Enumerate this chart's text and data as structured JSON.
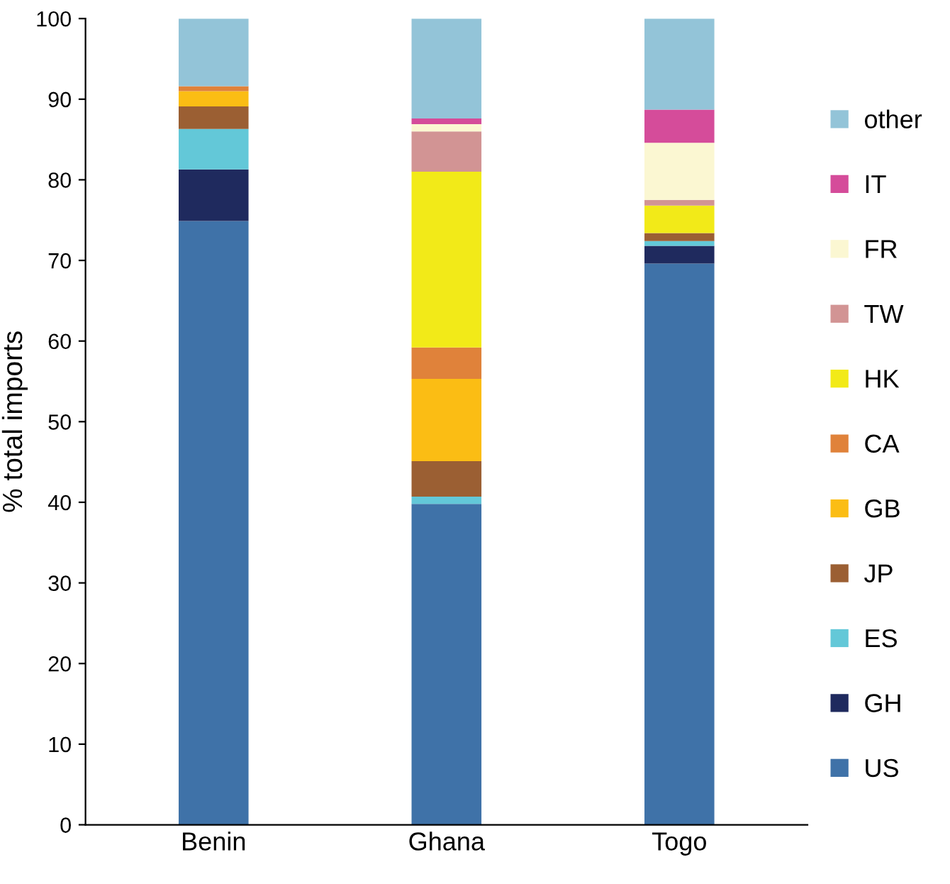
{
  "chart_data": {
    "type": "bar",
    "stacked": true,
    "ylabel": "% total imports",
    "categories": [
      "Benin",
      "Ghana",
      "Togo"
    ],
    "ylim": [
      0,
      100
    ],
    "yticks": [
      0,
      10,
      20,
      30,
      40,
      50,
      60,
      70,
      80,
      90,
      100
    ],
    "grid": false,
    "legend": "right",
    "series": [
      {
        "name": "US",
        "color": "#3f72a8",
        "values": [
          74.9,
          39.8,
          69.6
        ]
      },
      {
        "name": "GH",
        "color": "#1f2a5e",
        "values": [
          6.4,
          0,
          2.2
        ]
      },
      {
        "name": "ES",
        "color": "#63c8d8",
        "values": [
          5.0,
          0.9,
          0.6
        ]
      },
      {
        "name": "JP",
        "color": "#9b5f33",
        "values": [
          2.8,
          4.4,
          1.0
        ]
      },
      {
        "name": "GB",
        "color": "#fbbd14",
        "values": [
          1.9,
          10.2,
          0
        ]
      },
      {
        "name": "CA",
        "color": "#e0823a",
        "values": [
          0.6,
          3.9,
          0
        ]
      },
      {
        "name": "HK",
        "color": "#f2ea18",
        "values": [
          0,
          21.8,
          3.4
        ]
      },
      {
        "name": "TW",
        "color": "#d29494",
        "values": [
          0,
          5.0,
          0.7
        ]
      },
      {
        "name": "FR",
        "color": "#fbf7d2",
        "values": [
          0,
          0.9,
          7.1
        ]
      },
      {
        "name": "IT",
        "color": "#d54c9a",
        "values": [
          0,
          0.7,
          4.1
        ]
      },
      {
        "name": "other",
        "color": "#93c4d8",
        "values": [
          8.4,
          12.4,
          11.3
        ]
      }
    ]
  }
}
